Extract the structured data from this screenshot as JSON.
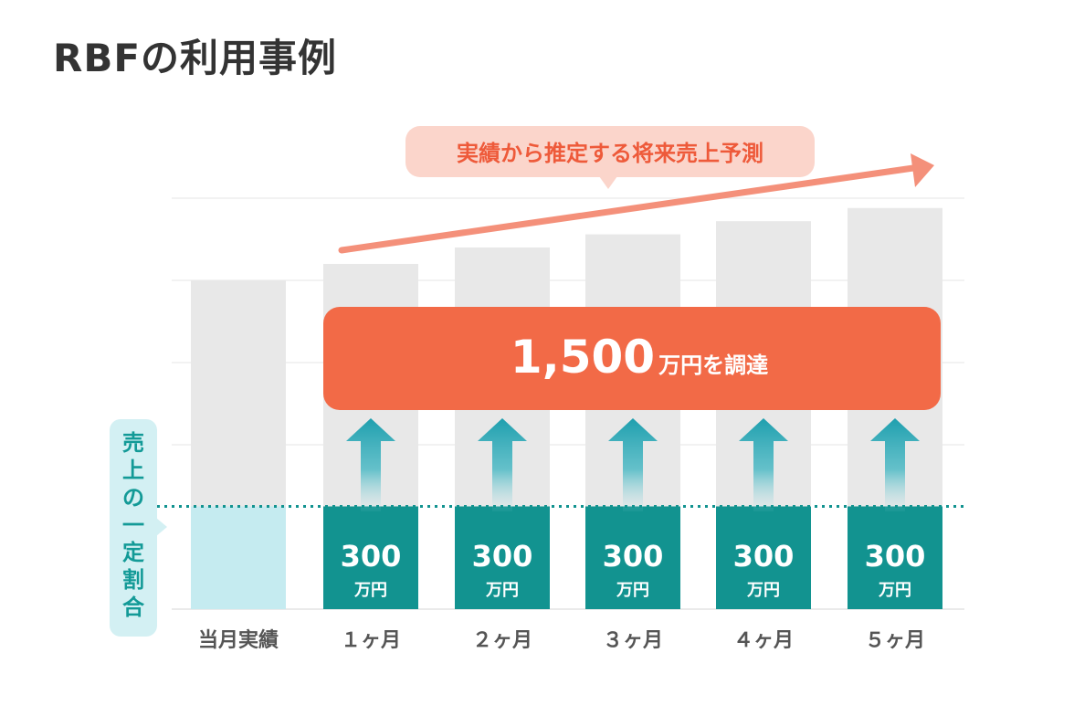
{
  "title": "RBFの利用事例",
  "colors": {
    "bar_bg": "#e8e8e8",
    "current_month_bar": "#c5ebf0",
    "share": "#129390",
    "banner": "#f26a47",
    "forecast": "#f4907a",
    "forecast_label_bg": "#fbd5cb",
    "side_label_bg": "#d3f0f3",
    "side_label_text": "#139a97",
    "axis_text": "#555555"
  },
  "chart_data": {
    "type": "bar",
    "categories": [
      "当月実績",
      "１ヶ月",
      "２ヶ月",
      "３ヶ月",
      "４ヶ月",
      "５ヶ月"
    ],
    "series": [
      {
        "values": [
          100,
          105,
          110,
          114,
          118,
          122
        ]
      }
    ],
    "share_values": [
      null,
      300,
      300,
      300,
      300,
      300
    ],
    "share_unit": "万円",
    "share_level": 0.25,
    "side_label": "売上の一定割合",
    "forecast_label": "実績から推定する将来売上予測",
    "banner": {
      "amount": "1,500",
      "suffix": "万円を調達"
    },
    "ylim": [
      0,
      125
    ],
    "grid": true
  }
}
